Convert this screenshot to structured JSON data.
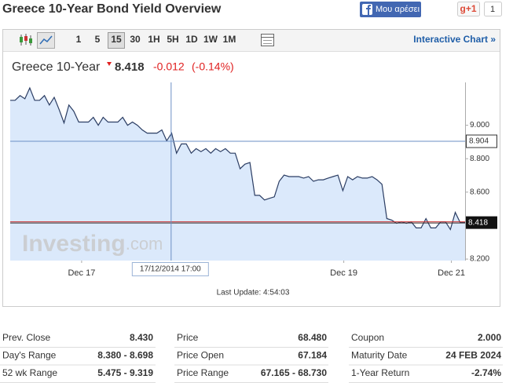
{
  "header": {
    "title": "Greece 10-Year Bond Yield Overview",
    "like": "Μου αρέσει",
    "gplus": "g+1",
    "gplus_count": "1"
  },
  "toolbar": {
    "periods": [
      "1",
      "5",
      "15",
      "30",
      "1H",
      "5H",
      "1D",
      "1W",
      "1M"
    ],
    "active": "15",
    "link": "Interactive Chart »"
  },
  "quote": {
    "name": "Greece 10-Year",
    "price": 8.418,
    "change": "-0.012",
    "change_percent": "(-0.14%)"
  },
  "chart_data": {
    "type": "line",
    "series": [
      {
        "color": "#2b3d63",
        "fill": "#dbe9fb",
        "values": [
          9.149,
          9.149,
          9.177,
          9.158,
          9.223,
          9.149,
          9.149,
          9.177,
          9.121,
          9.167,
          9.093,
          9.014,
          9.121,
          9.084,
          9.019,
          9.019,
          9.019,
          9.047,
          9.0,
          9.047,
          9.019,
          9.019,
          9.019,
          9.047,
          9.0,
          9.019,
          9.0,
          8.972,
          8.953,
          8.953,
          8.953,
          8.972,
          8.907,
          8.953,
          8.833,
          8.888,
          8.888,
          8.833,
          8.86,
          8.842,
          8.86,
          8.833,
          8.86,
          8.842,
          8.86,
          8.833,
          8.833,
          8.74,
          8.767,
          8.777,
          8.581,
          8.581,
          8.553,
          8.563,
          8.572,
          8.665,
          8.702,
          8.693,
          8.693,
          8.693,
          8.684,
          8.693,
          8.665,
          8.674,
          8.674,
          8.684,
          8.693,
          8.702,
          8.609,
          8.693,
          8.674,
          8.693,
          8.684,
          8.684,
          8.693,
          8.674,
          8.647,
          8.442,
          8.433,
          8.414,
          8.423,
          8.414,
          8.423,
          8.386,
          8.386,
          8.442,
          8.386,
          8.386,
          8.423,
          8.423,
          8.377,
          8.479,
          8.418,
          8.418
        ]
      }
    ],
    "xlim": [
      0,
      93
    ],
    "xticks": [
      {
        "value": 14.6,
        "label": "Dec 17"
      },
      {
        "value": 68.2,
        "label": "Dec 19"
      },
      {
        "value": 90.2,
        "label": "Dec 21"
      }
    ],
    "ylim": [
      8.191,
      9.256
    ],
    "yticks": [
      {
        "value": 8.2,
        "label": "8.200"
      },
      {
        "value": 8.6,
        "label": "8.600"
      },
      {
        "value": 8.8,
        "label": "8.800"
      },
      {
        "value": 9.0,
        "label": "9.000"
      }
    ],
    "crosshair": {
      "x": 32.9,
      "y": 8.904,
      "label": "17/12/2014 17:00"
    },
    "watermark": [
      "Investing",
      ".com"
    ],
    "last_update": "Last Update: 4:54:03"
  },
  "stats": {
    "columns": [
      [
        [
          "Prev. Close",
          "8.430"
        ],
        [
          "Day's Range",
          "8.380 - 8.698"
        ],
        [
          "52 wk Range",
          "5.475 - 9.319"
        ]
      ],
      [
        [
          "Price",
          "68.480"
        ],
        [
          "Price Open",
          "67.184"
        ],
        [
          "Price Range",
          "67.165 - 68.730"
        ]
      ],
      [
        [
          "Coupon",
          "2.000"
        ],
        [
          "Maturity Date",
          "24 FEB 2024"
        ],
        [
          "1-Year Return",
          "-2.74%"
        ]
      ]
    ]
  }
}
